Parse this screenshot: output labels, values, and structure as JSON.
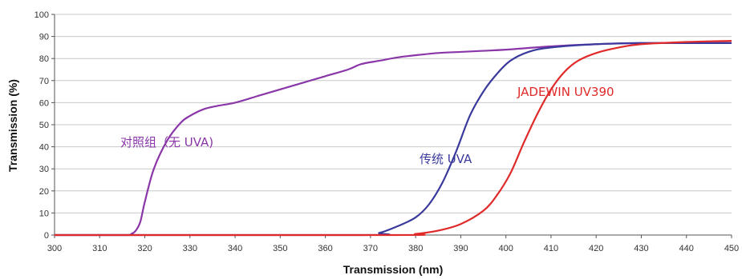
{
  "chart_data": {
    "type": "line",
    "xlabel": "Transmission (nm)",
    "ylabel": "Transmission (%)",
    "xlim": [
      300,
      450
    ],
    "ylim": [
      0,
      100
    ],
    "xticks": [
      300,
      310,
      320,
      330,
      340,
      350,
      360,
      370,
      380,
      390,
      400,
      410,
      420,
      430,
      440,
      450
    ],
    "yticks": [
      0,
      10,
      20,
      30,
      40,
      50,
      60,
      70,
      80,
      90,
      100
    ],
    "grid": "horizontal",
    "series": [
      {
        "name": "对照组（无 UVA)",
        "color": "#8a36a8",
        "x": [
          300,
          316,
          317,
          318,
          319,
          320,
          322,
          325,
          328,
          330,
          333,
          336,
          340,
          345,
          350,
          355,
          360,
          365,
          368,
          372,
          376,
          380,
          385,
          390,
          395,
          400,
          410,
          420,
          430,
          440,
          450
        ],
        "y": [
          0,
          0,
          0.5,
          2,
          6,
          15,
          30,
          43,
          51,
          54,
          57,
          58.5,
          60,
          63,
          66,
          69,
          72,
          75,
          77.5,
          79,
          80.5,
          81.5,
          82.5,
          83,
          83.5,
          84,
          85.5,
          86.5,
          87,
          87,
          87
        ]
      },
      {
        "name": "传统 UVA",
        "color": "#3a3a9c",
        "x": [
          300,
          368,
          372,
          376,
          380,
          383,
          386,
          389,
          392,
          395,
          398,
          401,
          405,
          410,
          420,
          430,
          440,
          450
        ],
        "y": [
          0,
          0,
          1,
          4,
          8,
          14,
          24,
          38,
          54,
          65,
          73,
          79,
          83,
          85,
          86.5,
          87,
          87,
          87
        ]
      },
      {
        "name": "JADEWIN UV390",
        "color": "#e02a2a",
        "x": [
          300,
          375,
          380,
          385,
          390,
          395,
          398,
          401,
          404,
          407,
          410,
          413,
          416,
          420,
          425,
          430,
          440,
          450
        ],
        "y": [
          0,
          0,
          0.5,
          2,
          5,
          11,
          18,
          28,
          42,
          55,
          66,
          74,
          79,
          82.5,
          85,
          86.5,
          87.5,
          88
        ]
      }
    ]
  }
}
